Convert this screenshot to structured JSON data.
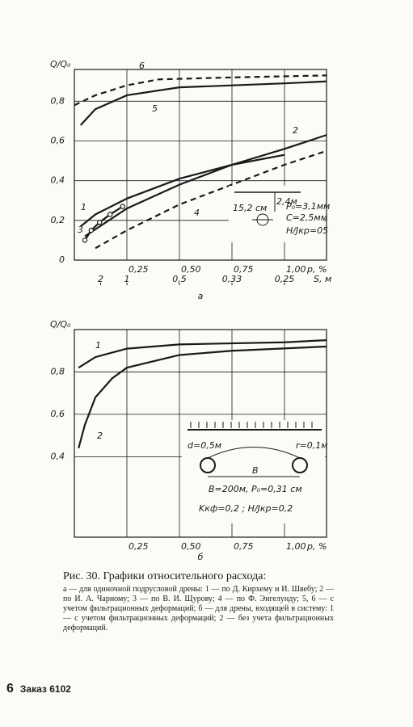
{
  "chart_data": [
    {
      "type": "line",
      "ylabel": "Q/Q₀",
      "xlabel": "p, %",
      "x2label": "S, м",
      "caption": "а",
      "xlim": [
        0,
        1.2
      ],
      "ylim": [
        0,
        0.96
      ],
      "xticks": [
        {
          "value": 0.25,
          "label": "0,25"
        },
        {
          "value": 0.5,
          "label": "0,50"
        },
        {
          "value": 0.75,
          "label": "0,75"
        },
        {
          "value": 1.0,
          "label": "1,00"
        }
      ],
      "x2ticks": [
        {
          "value": 0.125,
          "label": "2"
        },
        {
          "value": 0.25,
          "label": "1"
        },
        {
          "value": 0.5,
          "label": "0,5"
        },
        {
          "value": 0.75,
          "label": "0,33"
        },
        {
          "value": 1.0,
          "label": "0,25"
        }
      ],
      "yticks": [
        0,
        {
          "value": 0.2,
          "label": "0,2"
        },
        {
          "value": 0.4,
          "label": "0,4"
        },
        {
          "value": 0.6,
          "label": "0,6"
        },
        {
          "value": 0.8,
          "label": "0,8"
        }
      ],
      "grid": true,
      "series": [
        {
          "name": "1",
          "color": "#1a1a1a",
          "style": "solid",
          "x": [
            0.03,
            0.1,
            0.25,
            0.5,
            0.75,
            1.0
          ],
          "values": [
            0.17,
            0.23,
            0.31,
            0.41,
            0.48,
            0.53
          ]
        },
        {
          "name": "2",
          "color": "#1a1a1a",
          "style": "solid",
          "x": [
            0.05,
            0.25,
            0.5,
            0.75,
            1.0,
            1.2
          ],
          "values": [
            0.12,
            0.26,
            0.38,
            0.48,
            0.56,
            0.63
          ]
        },
        {
          "name": "3",
          "color": "#1a1a1a",
          "style": "circles",
          "x": [
            0.05,
            0.08,
            0.12,
            0.17,
            0.23
          ],
          "values": [
            0.1,
            0.15,
            0.19,
            0.23,
            0.27
          ]
        },
        {
          "name": "4",
          "color": "#1a1a1a",
          "style": "dashed",
          "x": [
            0.1,
            0.25,
            0.5,
            0.75,
            1.0,
            1.2
          ],
          "values": [
            0.06,
            0.15,
            0.28,
            0.38,
            0.48,
            0.55
          ]
        },
        {
          "name": "5",
          "color": "#1a1a1a",
          "style": "solid",
          "x": [
            0.03,
            0.1,
            0.25,
            0.5,
            0.75,
            1.0,
            1.2
          ],
          "values": [
            0.68,
            0.76,
            0.83,
            0.87,
            0.88,
            0.89,
            0.9
          ]
        },
        {
          "name": "6",
          "color": "#1a1a1a",
          "style": "dashed",
          "x": [
            0,
            0.1,
            0.25,
            0.4,
            0.75,
            1.2
          ],
          "values": [
            0.78,
            0.83,
            0.88,
            0.91,
            0.92,
            0.93
          ]
        }
      ],
      "inset": [
        "15,2 см",
        "P₀=3,1мм",
        "C=2,5мм",
        "H/Jкр=05",
        "2,4м"
      ]
    },
    {
      "type": "line",
      "ylabel": "Q/Q₀",
      "xlabel": "p, %",
      "caption": "б",
      "xlim": [
        0,
        1.2
      ],
      "ylim": [
        0.02,
        1.0
      ],
      "xticks": [
        {
          "value": 0.25,
          "label": "0,25"
        },
        {
          "value": 0.5,
          "label": "0,50"
        },
        {
          "value": 0.75,
          "label": "0,75"
        },
        {
          "value": 1.0,
          "label": "1,00"
        }
      ],
      "yticks": [
        {
          "value": 0.4,
          "label": "0,4"
        },
        {
          "value": 0.6,
          "label": "0,6"
        },
        {
          "value": 0.8,
          "label": "0,8"
        }
      ],
      "grid": true,
      "series": [
        {
          "name": "1",
          "color": "#1a1a1a",
          "style": "solid",
          "x": [
            0.02,
            0.1,
            0.25,
            0.5,
            1.0,
            1.2
          ],
          "values": [
            0.82,
            0.87,
            0.91,
            0.93,
            0.94,
            0.95
          ]
        },
        {
          "name": "2",
          "color": "#1a1a1a",
          "style": "solid",
          "x": [
            0.02,
            0.05,
            0.1,
            0.18,
            0.25,
            0.5,
            0.75,
            1.2
          ],
          "values": [
            0.44,
            0.55,
            0.68,
            0.77,
            0.82,
            0.88,
            0.9,
            0.92
          ]
        }
      ],
      "inset": [
        "d=0,5м",
        "r=0,1м",
        "B",
        "B=200м, P₀=0,31 см",
        "Kкф=0,2 ;  H/Jкр=0,2"
      ]
    }
  ],
  "caption": {
    "title": "Рис. 30. Графики относительного расхода:",
    "text": "а — для одиночной подрусловой дрены: 1 — по Д. Кирхему и И. Швебу; 2 — по И. А. Чарному; 3 — по В. И. Щурову; 4 — по Ф. Энгелунду; 5, 6 — с учетом фильтрационных деформаций; б — для дрены, входящей в систему: 1 — с учетом фильтрационных деформаций; 2 — без учета фильтрационных деформаций."
  },
  "footer": {
    "page": "6",
    "order": "Заказ 6102"
  }
}
